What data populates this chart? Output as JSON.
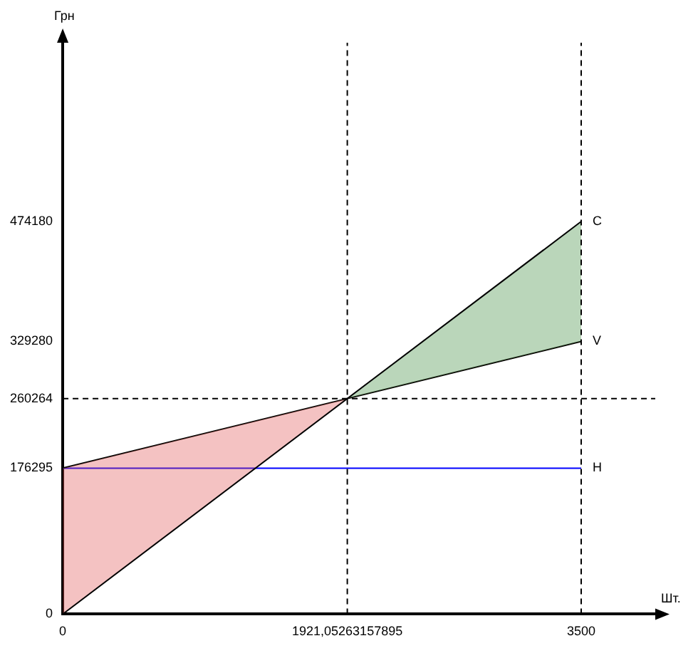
{
  "chart_data": {
    "type": "line",
    "xlabel": "Шт.",
    "ylabel": "Грн",
    "xlim": [
      0,
      4000
    ],
    "xticks": [
      0,
      {
        "value": 1921.05263157895,
        "label": "1921,05263157895"
      },
      3500
    ],
    "ylim": [
      0,
      690000
    ],
    "yticks": [
      0,
      176295,
      260264,
      329280,
      474180
    ],
    "x": [
      0,
      3500
    ],
    "series": [
      {
        "name": "C",
        "color": "#000000",
        "values": [
          0,
          474180
        ]
      },
      {
        "name": "V",
        "color": "#000000",
        "values": [
          176295,
          329280
        ]
      },
      {
        "name": "H",
        "color": "#0000ff",
        "values": [
          176295,
          176295
        ]
      }
    ],
    "ref_lines": [
      {
        "axis": "x",
        "value": 3500,
        "line_style": "dashed"
      },
      {
        "axis": "x",
        "value": 1921.05263157895,
        "line_style": "dashed"
      },
      {
        "axis": "y",
        "value": 260264,
        "line_style": "dashed"
      }
    ],
    "grid": false,
    "legend": false,
    "marker": "none",
    "line_style": "solid"
  }
}
